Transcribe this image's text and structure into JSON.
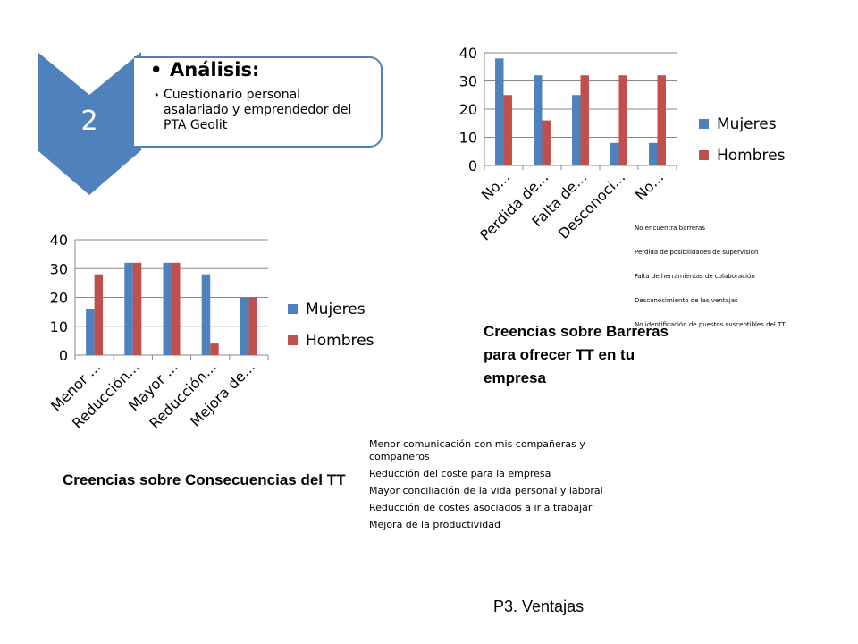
{
  "analysis": {
    "number": "2",
    "title": "Análisis:",
    "detail": "Cuestionario personal asalariado y emprendedor del  PTA Geolit",
    "color": "#4f81bd"
  },
  "chart_data": [
    {
      "id": "barreras",
      "type": "bar",
      "categories": [
        "No...",
        "Perdida de...",
        "Falta de...",
        "Desconoci...",
        "No..."
      ],
      "series": [
        {
          "name": "Mujeres",
          "color": "#4f81bd",
          "values": [
            38,
            32,
            25,
            8,
            8
          ]
        },
        {
          "name": "Hombres",
          "color": "#c0504d",
          "values": [
            25,
            16,
            32,
            32,
            32
          ]
        }
      ],
      "ylim": [
        0,
        40
      ],
      "yticks": [
        0,
        10,
        20,
        30,
        40
      ],
      "grid": true,
      "legend": "right",
      "title": "",
      "xlabel": "",
      "ylabel": ""
    },
    {
      "id": "consecuencias",
      "type": "bar",
      "categories": [
        "Menor ...",
        "Reducción...",
        "Mayor ...",
        "Reducción...",
        "Mejora de..."
      ],
      "series": [
        {
          "name": "Mujeres",
          "color": "#4f81bd",
          "values": [
            16,
            32,
            32,
            28,
            20
          ]
        },
        {
          "name": "Hombres",
          "color": "#c0504d",
          "values": [
            28,
            32,
            32,
            4,
            20
          ]
        }
      ],
      "ylim": [
        0,
        40
      ],
      "yticks": [
        0,
        10,
        20,
        30,
        40
      ],
      "grid": true,
      "legend": "right",
      "title": "",
      "xlabel": "",
      "ylabel": ""
    }
  ],
  "barreras_caption": "Creencias sobre Barreras para ofrecer TT en tu empresa",
  "barreras_key": [
    "No encuentra barreras",
    "Perdida de posibilidades de supervisión",
    "Falta de herramientas de colaboración",
    "Desconocimiento de las ventajas",
    "No identificación de puestos susceptibles del TT"
  ],
  "consecuencias_caption": "Creencias sobre Consecuencias del TT",
  "consecuencias_key": [
    "Menor comunicación con mis compañeras y compañeros",
    "Reducción del coste para la empresa",
    "Mayor conciliación de la vida personal y laboral",
    "Reducción de costes asociados a ir a trabajar",
    "Mejora de la productividad"
  ],
  "footer": "P3. Ventajas"
}
